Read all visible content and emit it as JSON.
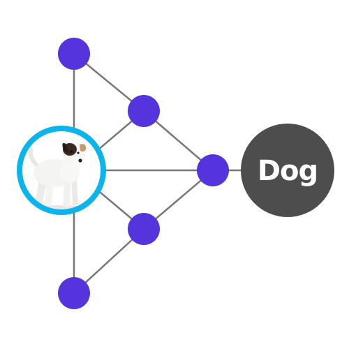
{
  "diagram": {
    "output_label": "Dog",
    "input_image": "puppy-photo",
    "colors": {
      "background": "#ffffff",
      "edge": "#777777",
      "node": "#5533dd",
      "input_ring": "#0bb4ea",
      "output_node": "#4d4d4d",
      "output_text": "#ffffff"
    }
  }
}
